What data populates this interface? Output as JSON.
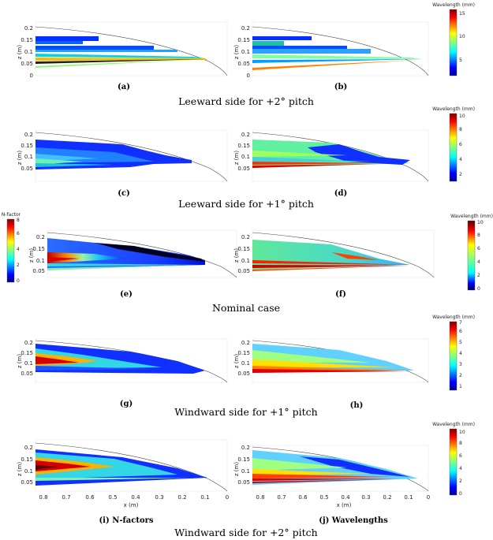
{
  "rows": [
    {
      "caption": "Leeward side for +2° pitch",
      "left": {
        "label": "(a)",
        "ylabel": "z (m)",
        "yticks": [
          "0",
          "0.05",
          "0.1",
          "0.15",
          "0.2"
        ]
      },
      "right": {
        "label": "(b)",
        "ylabel": "z (m)",
        "yticks": [
          "0",
          "0.05",
          "0.1",
          "0.15",
          "0.2"
        ]
      },
      "colorbar": {
        "title": "Wavelength (mm)",
        "ticks": [
          "5",
          "10",
          "15"
        ],
        "scheme": "jet"
      }
    },
    {
      "caption": "Leeward side for +1° pitch",
      "left": {
        "label": "(c)",
        "ylabel": "z (m)",
        "yticks": [
          "0.05",
          "0.1",
          "0.15",
          "0.2"
        ]
      },
      "right": {
        "label": "(d)",
        "ylabel": "z (m)",
        "yticks": [
          "0.05",
          "0.1",
          "0.15",
          "0.2"
        ]
      },
      "colorbar": {
        "title": "Wavelength (mm)",
        "ticks": [
          "2",
          "4",
          "6",
          "8",
          "10"
        ],
        "scheme": "jet"
      }
    },
    {
      "caption": "Nominal case",
      "left": {
        "label": "(e)",
        "ylabel": "z (m)",
        "yticks": [
          "0.05",
          "0.1",
          "0.15",
          "0.2"
        ]
      },
      "right": {
        "label": "(f)",
        "ylabel": "z (m)",
        "yticks": [
          "0.05",
          "0.1",
          "0.15",
          "0.2"
        ]
      },
      "colorbar_left": {
        "title": "N-factor",
        "ticks": [
          "0",
          "2",
          "4",
          "6",
          "8"
        ],
        "scheme": "jet"
      },
      "colorbar": {
        "title": "Wavelength (mm)",
        "ticks": [
          "0",
          "2",
          "4",
          "6",
          "8",
          "10"
        ],
        "scheme": "jet-dark"
      }
    },
    {
      "caption": "Windward side for +1° pitch",
      "left": {
        "label": "(g)",
        "ylabel": "z (m)",
        "yticks": [
          "0.05",
          "0.1",
          "0.15",
          "0.2"
        ]
      },
      "right": {
        "label": "(h)",
        "ylabel": "z (m)",
        "yticks": [
          "0.05",
          "0.1",
          "0.15",
          "0.2"
        ]
      },
      "colorbar": {
        "title": "Wavelength (mm)",
        "ticks": [
          "1",
          "2",
          "3",
          "4",
          "5",
          "6",
          "7"
        ],
        "scheme": "jet"
      }
    },
    {
      "caption": "Windward side for +2° pitch",
      "left": {
        "label": "(i) N-factors",
        "ylabel": "z (m)",
        "yticks": [
          "0.05",
          "0.1",
          "0.15",
          "0.2"
        ],
        "xlabel": "x (m)",
        "xticks": [
          "0.8",
          "0.7",
          "0.6",
          "0.5",
          "0.4",
          "0.3",
          "0.2",
          "0.1",
          "0"
        ]
      },
      "right": {
        "label": "(j) Wavelengths",
        "ylabel": "z (m)",
        "yticks": [
          "0.05",
          "0.1",
          "0.15",
          "0.2"
        ],
        "xlabel": "x (m)",
        "xticks": [
          "0.8",
          "0.7",
          "0.6",
          "0.5",
          "0.4",
          "0.3",
          "0.2",
          "0.1",
          "0"
        ]
      },
      "colorbar": {
        "title": "Wavelength (mm)",
        "ticks": [
          "0",
          "2",
          "4",
          "6",
          "8",
          "10"
        ],
        "scheme": "jet"
      }
    }
  ],
  "colors": {
    "jet": [
      "#00008f",
      "#0000ff",
      "#0080ff",
      "#00ffff",
      "#80ff80",
      "#ffff00",
      "#ff8000",
      "#ff0000",
      "#800000"
    ],
    "jet_dark": [
      "#000050",
      "#0000ff",
      "#00ffff",
      "#80ff80",
      "#ffff00",
      "#ff8000",
      "#ff0000",
      "#5a0000"
    ],
    "nfactor_low": "#1a3cff",
    "nfactor_mid": "#33d6e6",
    "nfactor_high": "#d40000"
  }
}
